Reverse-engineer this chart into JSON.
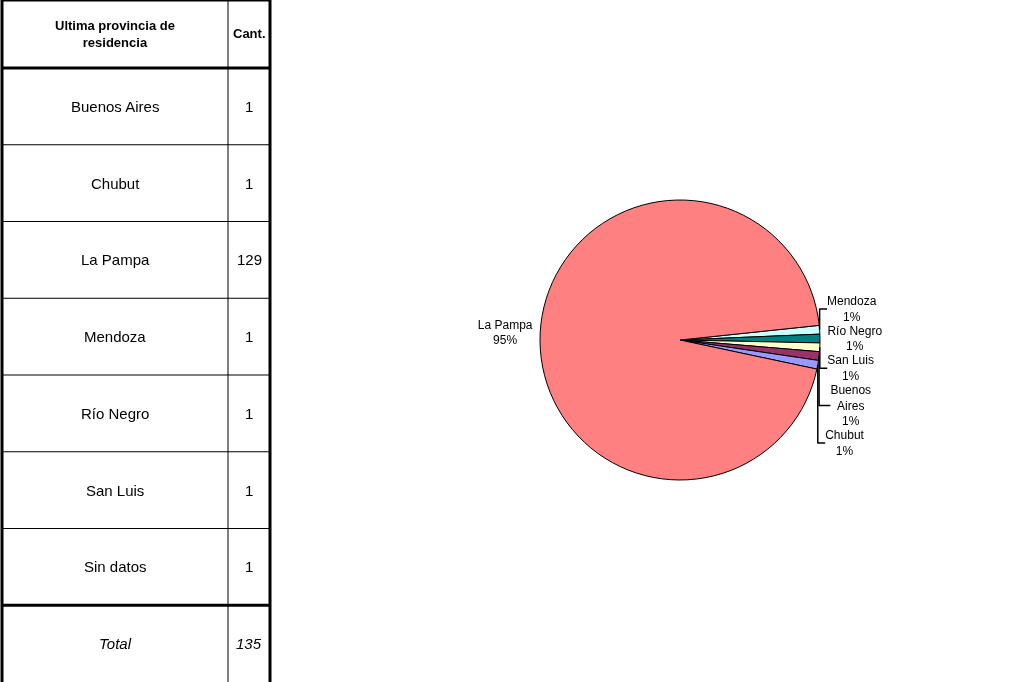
{
  "chart_data": [
    {
      "type": "other",
      "annotations": [
        "Ultima provincia de residencia",
        "Cant.",
        "Buenos Aires",
        "1",
        "Chubut",
        "1",
        "La Pampa",
        "129",
        "Mendoza",
        "1",
        "Río Negro",
        "1",
        "San Luis",
        "1",
        "Sin datos",
        "1",
        "Total",
        "135"
      ]
    },
    {
      "type": "pie",
      "categories": [
        "Mendoza",
        "Río Negro",
        "San Luis",
        "Buenos Aires",
        "Chubut",
        "La Pampa"
      ],
      "values": [
        1,
        1,
        1,
        1,
        1,
        95
      ],
      "colors": [
        "#ccffff",
        "#008080",
        "#ffffcc",
        "#993366",
        "#9999ff",
        "#ff8080"
      ],
      "value_labels": [
        "1%",
        "1%",
        "1%",
        "1%",
        "1%",
        "95%"
      ]
    }
  ]
}
